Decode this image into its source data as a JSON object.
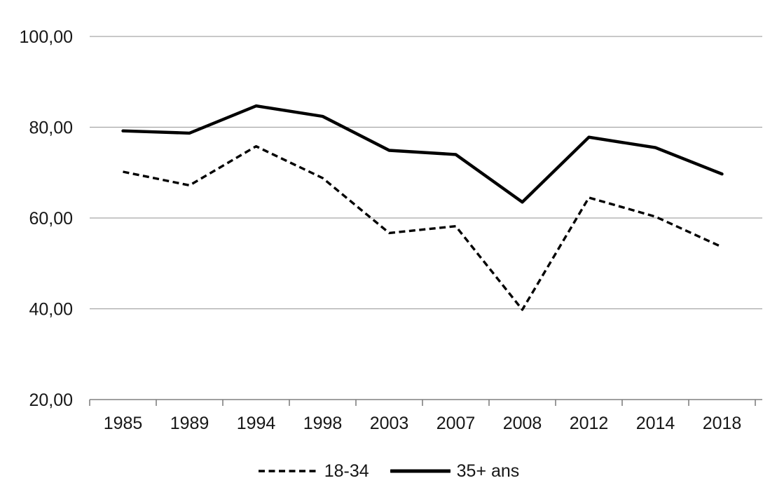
{
  "chart_data": {
    "type": "line",
    "title": "",
    "xlabel": "",
    "ylabel": "",
    "categories": [
      "1985",
      "1989",
      "1994",
      "1998",
      "2003",
      "2007",
      "2008",
      "2012",
      "2014",
      "2018"
    ],
    "series": [
      {
        "name": "18-34",
        "line_style": "dashed",
        "color": "#000000",
        "values": [
          70.2,
          67.2,
          75.8,
          68.8,
          56.7,
          58.2,
          39.8,
          64.5,
          60.3,
          53.6
        ]
      },
      {
        "name": "35+ ans",
        "line_style": "solid",
        "color": "#000000",
        "values": [
          79.2,
          78.7,
          84.7,
          82.4,
          74.9,
          74.0,
          63.5,
          77.8,
          75.5,
          69.7
        ]
      }
    ],
    "ylim": [
      20,
      100
    ],
    "ytick_step": 20,
    "ytick_labels_top_to_bottom": [
      "100,00",
      "80,00",
      "60,00",
      "40,00",
      "20,00"
    ],
    "decimal_separator": ",",
    "grid": true,
    "legend_position": "bottom",
    "colors": {
      "gridline": "#a6a6a6",
      "axis": "#808080",
      "tick": "#808080",
      "label_text": "#171717",
      "background": "#ffffff"
    }
  }
}
